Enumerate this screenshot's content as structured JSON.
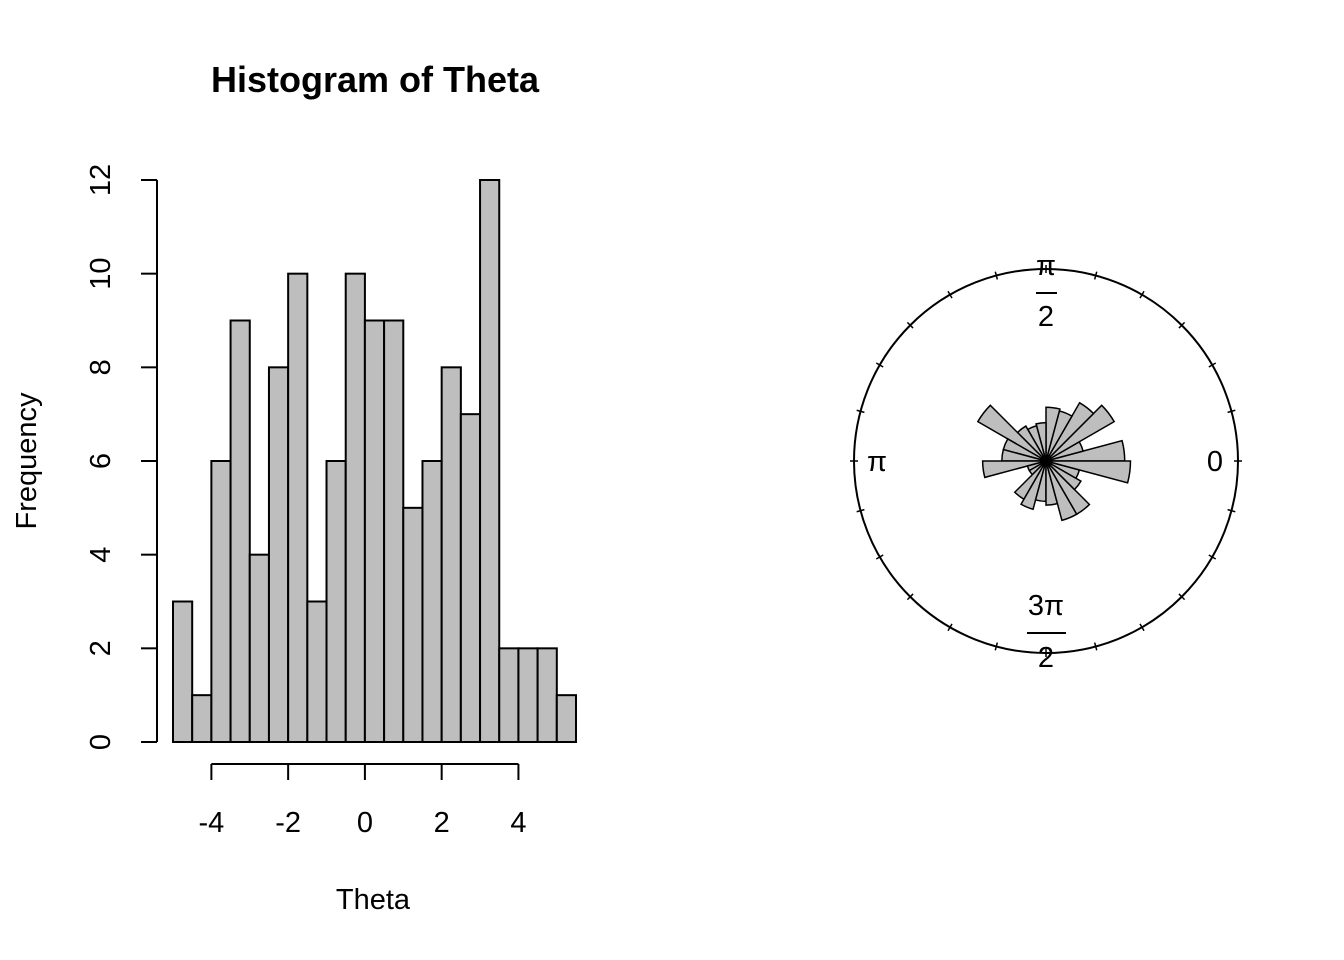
{
  "chart_data": [
    {
      "type": "bar",
      "title": "Histogram of Theta",
      "xlabel": "Theta",
      "ylabel": "Frequency",
      "bins": [
        {
          "x0": -5.0,
          "x1": -4.5,
          "count": 3
        },
        {
          "x0": -4.5,
          "x1": -4.0,
          "count": 1
        },
        {
          "x0": -4.0,
          "x1": -3.5,
          "count": 6
        },
        {
          "x0": -3.5,
          "x1": -3.0,
          "count": 9
        },
        {
          "x0": -3.0,
          "x1": -2.5,
          "count": 4
        },
        {
          "x0": -2.5,
          "x1": -2.0,
          "count": 8
        },
        {
          "x0": -2.0,
          "x1": -1.5,
          "count": 10
        },
        {
          "x0": -1.5,
          "x1": -1.0,
          "count": 3
        },
        {
          "x0": -1.0,
          "x1": -0.5,
          "count": 6
        },
        {
          "x0": -0.5,
          "x1": 0.0,
          "count": 10
        },
        {
          "x0": 0.0,
          "x1": 0.5,
          "count": 9
        },
        {
          "x0": 0.5,
          "x1": 1.0,
          "count": 9
        },
        {
          "x0": 1.0,
          "x1": 1.5,
          "count": 5
        },
        {
          "x0": 1.5,
          "x1": 2.0,
          "count": 6
        },
        {
          "x0": 2.0,
          "x1": 2.5,
          "count": 8
        },
        {
          "x0": 2.5,
          "x1": 3.0,
          "count": 7
        },
        {
          "x0": 3.0,
          "x1": 3.5,
          "count": 12
        },
        {
          "x0": 3.5,
          "x1": 4.0,
          "count": 2
        },
        {
          "x0": 4.0,
          "x1": 4.5,
          "count": 2
        },
        {
          "x0": 4.5,
          "x1": 5.0,
          "count": 2
        },
        {
          "x0": 5.0,
          "x1": 5.5,
          "count": 1
        }
      ],
      "x_ticks": [
        -4,
        -2,
        0,
        2,
        4
      ],
      "x_tick_labels": [
        "-4",
        "-2",
        "0",
        "2",
        "4"
      ],
      "y_ticks": [
        0,
        2,
        4,
        6,
        8,
        10,
        12
      ],
      "y_tick_labels": [
        "0",
        "2",
        "4",
        "6",
        "8",
        "10",
        "12"
      ],
      "xlim": [
        -5.0,
        5.5
      ],
      "ylim": [
        0,
        12
      ],
      "grid": false,
      "bar_color": "#bebebe",
      "edge_color": "#000000"
    },
    {
      "type": "rose",
      "angle_labels": {
        "zero": "0",
        "half_pi_num": "π",
        "half_pi_den": "2",
        "pi": "π",
        "three_half_pi_num": "3π",
        "three_half_pi_den": "2"
      },
      "outer_tick_count": 24,
      "max_radius_frac": 0.6,
      "bin_count": 24,
      "radii_frac": [
        0.41,
        0.2,
        0.41,
        0.35,
        0.27,
        0.28,
        0.2,
        0.19,
        0.21,
        0.41,
        0.23,
        0.23,
        0.33,
        0.1,
        0.1,
        0.23,
        0.26,
        0.21,
        0.23,
        0.32,
        0.32,
        0.21,
        0.18,
        0.44
      ],
      "bar_color": "#bebebe",
      "edge_color": "#000000"
    }
  ]
}
